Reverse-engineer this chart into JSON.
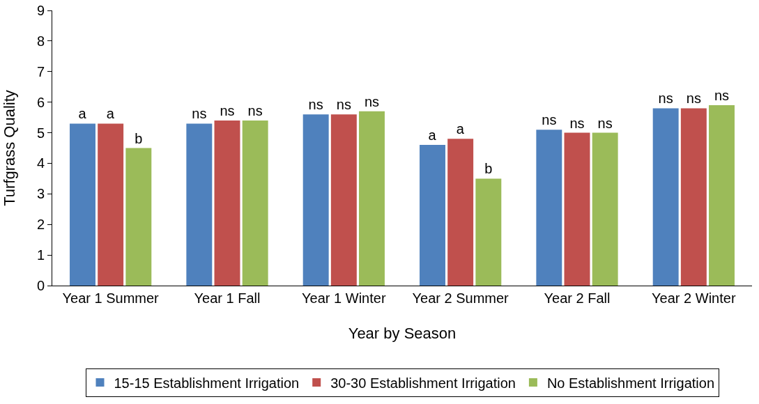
{
  "chart_data": {
    "type": "bar",
    "xlabel": "Year by Season",
    "ylabel": "Turfgrass Quality",
    "categories": [
      "Year 1 Summer",
      "Year 1 Fall",
      "Year 1 Winter",
      "Year 2 Summer",
      "Year 2 Fall",
      "Year 2 Winter"
    ],
    "series": [
      {
        "name": "15-15 Establishment Irrigation",
        "color": "#4f81bd",
        "values": [
          5.3,
          5.3,
          5.6,
          4.6,
          5.1,
          5.8
        ],
        "value_labels": [
          "a",
          "ns",
          "ns",
          "a",
          "ns",
          "ns"
        ]
      },
      {
        "name": "30-30 Establishment Irrigation",
        "color": "#c0504d",
        "values": [
          5.3,
          5.4,
          5.6,
          4.8,
          5.0,
          5.8
        ],
        "value_labels": [
          "a",
          "ns",
          "ns",
          "a",
          "ns",
          "ns"
        ]
      },
      {
        "name": "No Establishment Irrigation",
        "color": "#9bbb59",
        "values": [
          4.5,
          5.4,
          5.7,
          3.5,
          5.0,
          5.9
        ],
        "value_labels": [
          "b",
          "ns",
          "ns",
          "b",
          "ns",
          "ns"
        ]
      }
    ],
    "ylim": [
      0,
      9
    ],
    "yticks": [
      0,
      1,
      2,
      3,
      4,
      5,
      6,
      7,
      8,
      9
    ],
    "grid": false,
    "legend": "bottom"
  }
}
